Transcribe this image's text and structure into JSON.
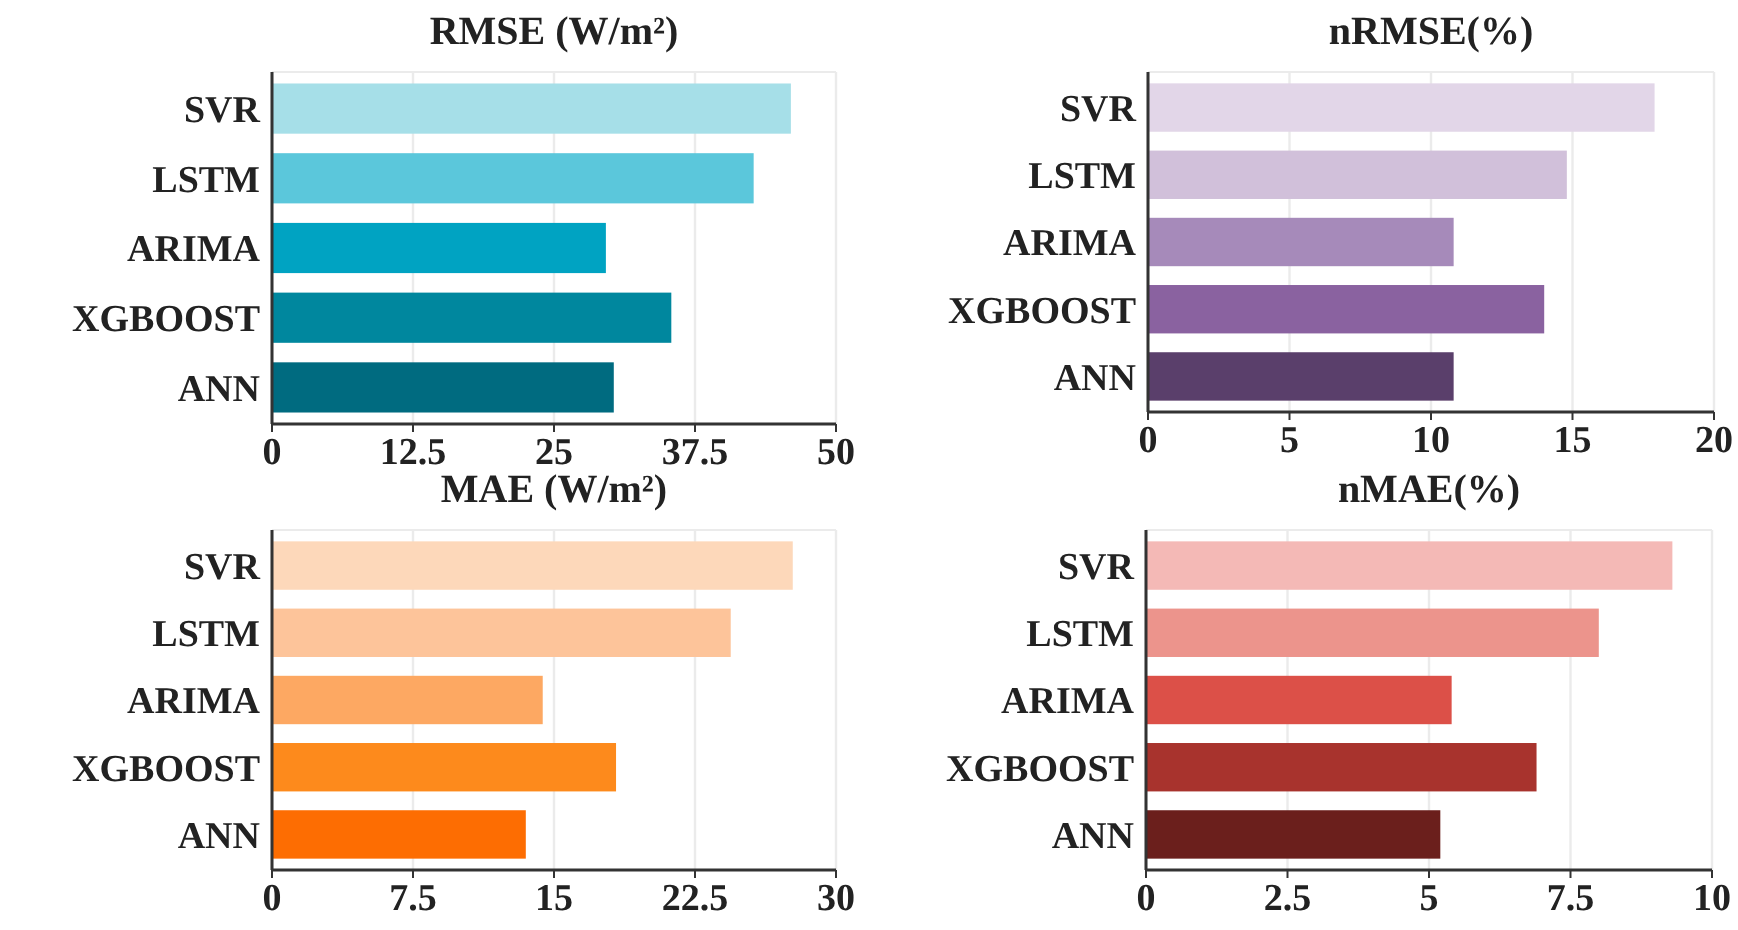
{
  "chart_data": [
    {
      "type": "bar",
      "orientation": "horizontal",
      "title": "RMSE (W/m²)",
      "categories": [
        "SVR",
        "LSTM",
        "ARIMA",
        "XGBOOST",
        "ANN"
      ],
      "values": [
        46.0,
        42.7,
        29.6,
        35.4,
        30.3
      ],
      "colors": [
        "#a6dfe8",
        "#5bc7db",
        "#00a3c2",
        "#00879e",
        "#006b80"
      ],
      "xlim": [
        0,
        50
      ],
      "xticks": [
        0,
        12.5,
        25,
        37.5,
        50
      ],
      "grid": "x"
    },
    {
      "type": "bar",
      "orientation": "horizontal",
      "title": "nRMSE(%)",
      "categories": [
        "SVR",
        "LSTM",
        "ARIMA",
        "XGBOOST",
        "ANN"
      ],
      "values": [
        17.9,
        14.8,
        10.8,
        14.0,
        10.8
      ],
      "colors": [
        "#e2d6e8",
        "#d1c0da",
        "#a68aba",
        "#8a62a0",
        "#5a3f6b"
      ],
      "xlim": [
        0,
        20
      ],
      "xticks": [
        0,
        5,
        10,
        15,
        20
      ],
      "grid": "x"
    },
    {
      "type": "bar",
      "orientation": "horizontal",
      "title": "MAE (W/m²)",
      "categories": [
        "SVR",
        "LSTM",
        "ARIMA",
        "XGBOOST",
        "ANN"
      ],
      "values": [
        27.7,
        24.4,
        14.4,
        18.3,
        13.5
      ],
      "colors": [
        "#fdd8ba",
        "#fdc49a",
        "#fda862",
        "#fd8a1c",
        "#fd6d02"
      ],
      "xlim": [
        0,
        30
      ],
      "xticks": [
        0,
        7.5,
        15,
        22.5,
        30
      ],
      "grid": "x"
    },
    {
      "type": "bar",
      "orientation": "horizontal",
      "title": "nMAE(%)",
      "categories": [
        "SVR",
        "LSTM",
        "ARIMA",
        "XGBOOST",
        "ANN"
      ],
      "values": [
        9.3,
        8.0,
        5.4,
        6.9,
        5.2
      ],
      "colors": [
        "#f4b9b6",
        "#ec948c",
        "#dc5048",
        "#a8332d",
        "#6b1f1c"
      ],
      "xlim": [
        0,
        10
      ],
      "xticks": [
        0,
        2.5,
        5,
        7.5,
        10
      ],
      "grid": "x"
    }
  ]
}
